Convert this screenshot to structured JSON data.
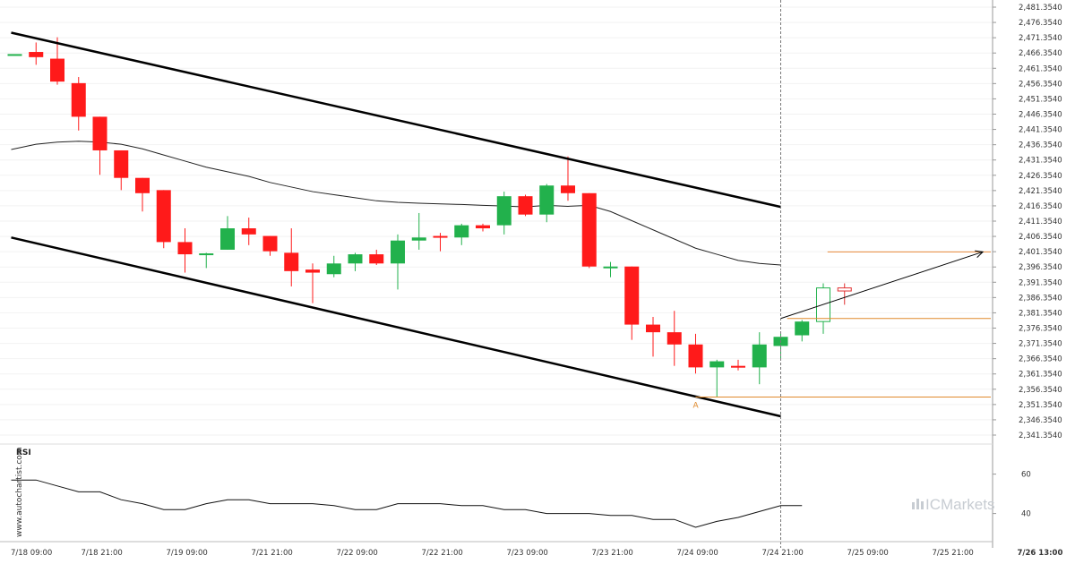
{
  "chart_data": {
    "type": "candlestick",
    "price_axis": {
      "ylim": [
        2341.354,
        2481.354
      ],
      "step": 5,
      "ticks": [
        "2,481.3540",
        "2,476.3540",
        "2,471.3540",
        "2,466.3540",
        "2,461.3540",
        "2,456.3540",
        "2,451.3540",
        "2,446.3540",
        "2,441.3540",
        "2,436.3540",
        "2,431.3540",
        "2,426.3540",
        "2,421.3540",
        "2,416.3540",
        "2,411.3540",
        "2,406.3540",
        "2,401.3540",
        "2,396.3540",
        "2,391.3540",
        "2,386.3540",
        "2,381.3540",
        "2,376.3540",
        "2,371.3540",
        "2,366.3540",
        "2,361.3540",
        "2,356.3540",
        "2,351.3540",
        "2,346.3540",
        "2,341.3540"
      ]
    },
    "time_axis": {
      "labels": [
        "7/18 09:00",
        "7/18 21:00",
        "7/19 09:00",
        "7/21 21:00",
        "7/22 09:00",
        "7/22 21:00",
        "7/23 09:00",
        "7/23 21:00",
        "7/24 09:00",
        "7/24 21:00",
        "7/25 09:00",
        "7/25 21:00",
        "7/26 13:00"
      ],
      "label_bar_index": [
        0,
        4,
        8,
        12,
        16,
        20,
        24,
        28,
        32,
        36,
        40,
        44,
        48
      ],
      "highlight_label": "7/26 13:00",
      "highlight_bar": 48
    },
    "candles": [
      {
        "o": 2466.0,
        "h": 2466.0,
        "l": 2466.0,
        "c": 2466.0,
        "color": "#22b14c"
      },
      {
        "o": 2466.7,
        "h": 2469.8,
        "l": 2462.5,
        "c": 2465.0,
        "color": "#ff1a1a"
      },
      {
        "o": 2464.5,
        "h": 2471.5,
        "l": 2456.0,
        "c": 2457.0,
        "color": "#ff1a1a"
      },
      {
        "o": 2456.5,
        "h": 2458.5,
        "l": 2441.0,
        "c": 2445.5,
        "color": "#ff1a1a"
      },
      {
        "o": 2445.5,
        "h": 2445.5,
        "l": 2426.5,
        "c": 2434.5,
        "color": "#ff1a1a"
      },
      {
        "o": 2434.5,
        "h": 2434.5,
        "l": 2421.5,
        "c": 2425.5,
        "color": "#ff1a1a"
      },
      {
        "o": 2425.5,
        "h": 2425.5,
        "l": 2414.5,
        "c": 2420.5,
        "color": "#ff1a1a"
      },
      {
        "o": 2421.5,
        "h": 2421.5,
        "l": 2402.5,
        "c": 2404.5,
        "color": "#ff1a1a"
      },
      {
        "o": 2404.5,
        "h": 2409.0,
        "l": 2394.5,
        "c": 2400.5,
        "color": "#ff1a1a"
      },
      {
        "o": 2400.5,
        "h": 2401.0,
        "l": 2396.0,
        "c": 2400.8,
        "color": "#22b14c"
      },
      {
        "o": 2402.0,
        "h": 2413.0,
        "l": 2402.0,
        "c": 2409.0,
        "color": "#22b14c"
      },
      {
        "o": 2409.0,
        "h": 2412.5,
        "l": 2403.5,
        "c": 2407.0,
        "color": "#ff1a1a"
      },
      {
        "o": 2406.5,
        "h": 2406.5,
        "l": 2400.0,
        "c": 2401.5,
        "color": "#ff1a1a"
      },
      {
        "o": 2401.0,
        "h": 2409.0,
        "l": 2390.0,
        "c": 2395.0,
        "color": "#ff1a1a"
      },
      {
        "o": 2395.5,
        "h": 2397.5,
        "l": 2384.5,
        "c": 2394.5,
        "color": "#ff1a1a"
      },
      {
        "o": 2394.0,
        "h": 2400.0,
        "l": 2393.0,
        "c": 2397.5,
        "color": "#22b14c"
      },
      {
        "o": 2397.5,
        "h": 2401.0,
        "l": 2395.0,
        "c": 2400.5,
        "color": "#22b14c"
      },
      {
        "o": 2400.5,
        "h": 2402.0,
        "l": 2397.0,
        "c": 2397.5,
        "color": "#ff1a1a"
      },
      {
        "o": 2397.5,
        "h": 2407.0,
        "l": 2389.0,
        "c": 2405.0,
        "color": "#22b14c"
      },
      {
        "o": 2405.0,
        "h": 2414.0,
        "l": 2402.0,
        "c": 2406.0,
        "color": "#22b14c"
      },
      {
        "o": 2406.5,
        "h": 2407.5,
        "l": 2401.5,
        "c": 2406.0,
        "color": "#ff1a1a"
      },
      {
        "o": 2406.0,
        "h": 2410.5,
        "l": 2403.5,
        "c": 2410.0,
        "color": "#22b14c"
      },
      {
        "o": 2410.0,
        "h": 2410.5,
        "l": 2408.0,
        "c": 2409.0,
        "color": "#ff1a1a"
      },
      {
        "o": 2410.0,
        "h": 2421.0,
        "l": 2407.0,
        "c": 2419.5,
        "color": "#22b14c"
      },
      {
        "o": 2419.5,
        "h": 2420.0,
        "l": 2413.0,
        "c": 2413.5,
        "color": "#ff1a1a"
      },
      {
        "o": 2413.5,
        "h": 2423.5,
        "l": 2411.0,
        "c": 2423.0,
        "color": "#22b14c"
      },
      {
        "o": 2423.0,
        "h": 2432.5,
        "l": 2418.0,
        "c": 2420.5,
        "color": "#ff1a1a"
      },
      {
        "o": 2420.5,
        "h": 2420.5,
        "l": 2396.0,
        "c": 2396.5,
        "color": "#ff1a1a"
      },
      {
        "o": 2396.5,
        "h": 2398.0,
        "l": 2393.0,
        "c": 2396.5,
        "color": "#22b14c"
      },
      {
        "o": 2396.5,
        "h": 2396.5,
        "l": 2372.5,
        "c": 2377.5,
        "color": "#ff1a1a"
      },
      {
        "o": 2377.5,
        "h": 2380.0,
        "l": 2367.0,
        "c": 2375.0,
        "color": "#ff1a1a"
      },
      {
        "o": 2375.0,
        "h": 2382.0,
        "l": 2364.0,
        "c": 2371.0,
        "color": "#ff1a1a"
      },
      {
        "o": 2371.0,
        "h": 2374.5,
        "l": 2361.5,
        "c": 2363.5,
        "color": "#ff1a1a"
      },
      {
        "o": 2363.5,
        "h": 2366.0,
        "l": 2353.8,
        "c": 2365.5,
        "color": "#22b14c"
      },
      {
        "o": 2364.0,
        "h": 2366.0,
        "l": 2362.5,
        "c": 2363.5,
        "color": "#ff1a1a"
      },
      {
        "o": 2363.5,
        "h": 2375.0,
        "l": 2358.0,
        "c": 2371.0,
        "color": "#22b14c"
      },
      {
        "o": 2370.5,
        "h": 2374.5,
        "l": 2366.0,
        "c": 2373.5,
        "color": "#22b14c"
      },
      {
        "o": 2374.0,
        "h": 2379.0,
        "l": 2372.0,
        "c": 2378.5,
        "color": "#22b14c"
      },
      {
        "o": 2378.5,
        "h": 2391.0,
        "l": 2374.5,
        "c": 2389.5,
        "color": "#22b14c",
        "hollow": true
      },
      {
        "o": 2389.5,
        "h": 2391.0,
        "l": 2384.0,
        "c": 2388.5,
        "color": "#e03030",
        "hollow": true
      }
    ],
    "moving_average": [
      2434.8,
      2436.5,
      2437.2,
      2437.5,
      2437.2,
      2436.5,
      2435.0,
      2433.0,
      2431.0,
      2429.0,
      2427.5,
      2426.0,
      2424.0,
      2422.5,
      2421.0,
      2420.0,
      2419.0,
      2418.0,
      2417.5,
      2417.2,
      2417.0,
      2416.8,
      2416.5,
      2416.3,
      2416.0,
      2416.5,
      2416.2,
      2416.5,
      2414.5,
      2411.5,
      2408.5,
      2405.5,
      2402.5,
      2400.5,
      2398.5,
      2397.5,
      2397.0
    ],
    "rsi": {
      "title": "RSI",
      "levels": [
        {
          "label": "60",
          "value": 60
        },
        {
          "label": "40",
          "value": 40
        }
      ],
      "range": [
        28,
        68
      ],
      "values": [
        57,
        57,
        54,
        51,
        51,
        47,
        45,
        42,
        42,
        45,
        47,
        47,
        45,
        45,
        45,
        44,
        42,
        42,
        45,
        45,
        45,
        44,
        44,
        42,
        42,
        40,
        40,
        40,
        39,
        39,
        37,
        37,
        33,
        36,
        38,
        41,
        44,
        44
      ]
    },
    "channel": {
      "upper": [
        {
          "bar": 0,
          "price": 2473.0
        },
        {
          "bar": 36,
          "price": 2416.0
        }
      ],
      "lower": [
        {
          "bar": 0,
          "price": 2406.0
        },
        {
          "bar": 36,
          "price": 2347.5
        }
      ]
    },
    "projection": {
      "from": {
        "bar": 36,
        "price": 2379.5
      },
      "to": {
        "bar": 45.5,
        "price": 2401.3
      }
    },
    "levels": [
      {
        "price": 2401.3,
        "from_bar": 38.2,
        "color": "#e88a3a"
      },
      {
        "price": 2379.5,
        "from_bar": 36.3,
        "color": "#e08a2c"
      },
      {
        "price": 2353.8,
        "from_bar": 32,
        "color": "#e08a2c"
      }
    ],
    "point_label": {
      "text": "A",
      "bar": 32,
      "price": 2353.8
    },
    "now_line_bar": 36
  },
  "brand": {
    "logo_icon": "bars-logo-icon",
    "name": "ICMarkets",
    "primary_color": "#c7ccd2"
  },
  "watermark": {
    "text": "www.autochartist.com"
  }
}
